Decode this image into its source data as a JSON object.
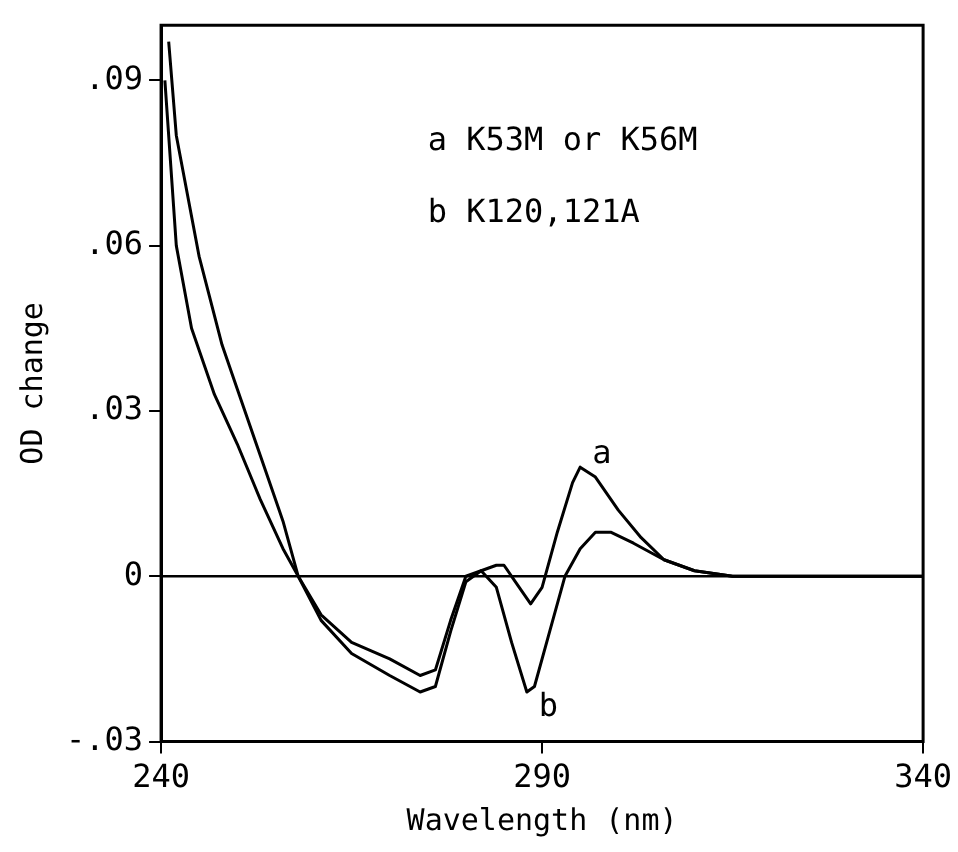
{
  "chart_data": {
    "type": "line",
    "xlabel": "Wavelength (nm)",
    "ylabel": "OD change",
    "xlim": [
      240,
      340
    ],
    "xticks": [
      240,
      290,
      340
    ],
    "ylim": [
      -0.03,
      0.1
    ],
    "yticks": [
      {
        "value": -0.03,
        "label": "-.03"
      },
      {
        "value": 0,
        "label": "0"
      },
      {
        "value": 0.03,
        "label": ".03"
      },
      {
        "value": 0.06,
        "label": ".06"
      },
      {
        "value": 0.09,
        "label": ".09"
      }
    ],
    "grid": false,
    "legend": false,
    "marker": "none",
    "line_style": "solid",
    "ref_lines": [
      {
        "axis": "y",
        "value": 0,
        "color": "#000000"
      }
    ],
    "annotations": [
      "a K53M or K56M",
      "b K120,121A",
      "a",
      "b"
    ],
    "series": [
      {
        "color": "#000000",
        "x": [
          241,
          242,
          245,
          248,
          250,
          253,
          256,
          258,
          261,
          265,
          270,
          274,
          276,
          278,
          280,
          282,
          284,
          285,
          287,
          288.5,
          290,
          292,
          294,
          295,
          297,
          300,
          303,
          306,
          310,
          315,
          320,
          340
        ],
        "values": [
          0.097,
          0.08,
          0.058,
          0.042,
          0.034,
          0.022,
          0.01,
          0.0,
          -0.008,
          -0.014,
          -0.018,
          -0.021,
          -0.02,
          -0.01,
          -0.001,
          0.001,
          0.002,
          0.002,
          -0.002,
          -0.005,
          -0.002,
          0.008,
          0.017,
          0.0198,
          0.018,
          0.012,
          0.007,
          0.003,
          0.001,
          0,
          0,
          0
        ]
      },
      {
        "color": "#000000",
        "x": [
          240.5,
          242,
          244,
          247,
          250,
          253,
          256,
          258,
          261,
          265,
          270,
          274,
          276,
          278,
          280,
          282,
          284,
          286,
          288,
          289,
          291,
          293,
          295,
          297,
          299,
          302,
          306,
          310,
          315,
          340
        ],
        "values": [
          0.09,
          0.06,
          0.045,
          0.033,
          0.024,
          0.014,
          0.005,
          0,
          -0.007,
          -0.012,
          -0.015,
          -0.018,
          -0.017,
          -0.008,
          0.0,
          0.001,
          -0.002,
          -0.012,
          -0.021,
          -0.02,
          -0.01,
          0.0,
          0.005,
          0.008,
          0.008,
          0.006,
          0.003,
          0.001,
          0,
          0
        ]
      }
    ]
  }
}
